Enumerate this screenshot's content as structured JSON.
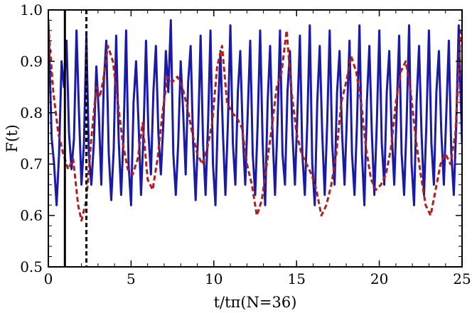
{
  "chart_data": {
    "type": "line",
    "xlabel": "t/tπ(N=36)",
    "ylabel": "F(t)",
    "xlim": [
      0,
      25
    ],
    "ylim": [
      0.5,
      1.0
    ],
    "xticks": [
      "0",
      "5",
      "10",
      "15",
      "20",
      "25"
    ],
    "yticks": [
      "0.5",
      "0.6",
      "0.7",
      "0.8",
      "0.9",
      "1.0"
    ],
    "vlines": [
      {
        "x": 1.0,
        "style": "solid",
        "color": "#000000"
      },
      {
        "x": 2.3,
        "style": "dashed",
        "color": "#000000"
      }
    ],
    "series": [
      {
        "style": "solid",
        "color": "#1a1aa6",
        "points": [
          [
            0.0,
            0.98
          ],
          [
            0.2,
            0.75
          ],
          [
            0.35,
            0.7
          ],
          [
            0.5,
            0.62
          ],
          [
            0.65,
            0.72
          ],
          [
            0.8,
            0.9
          ],
          [
            0.95,
            0.85
          ],
          [
            1.1,
            0.94
          ],
          [
            1.25,
            0.76
          ],
          [
            1.4,
            0.69
          ],
          [
            1.55,
            0.75
          ],
          [
            1.7,
            0.96
          ],
          [
            1.85,
            0.8
          ],
          [
            2.0,
            0.66
          ],
          [
            2.15,
            0.74
          ],
          [
            2.3,
            0.95
          ],
          [
            2.45,
            0.72
          ],
          [
            2.6,
            0.66
          ],
          [
            2.75,
            0.74
          ],
          [
            2.9,
            0.89
          ],
          [
            3.05,
            0.8
          ],
          [
            3.2,
            0.66
          ],
          [
            3.35,
            0.86
          ],
          [
            3.5,
            0.94
          ],
          [
            3.65,
            0.72
          ],
          [
            3.8,
            0.63
          ],
          [
            3.95,
            0.73
          ],
          [
            4.1,
            0.95
          ],
          [
            4.25,
            0.75
          ],
          [
            4.4,
            0.64
          ],
          [
            4.55,
            0.76
          ],
          [
            4.7,
            0.96
          ],
          [
            4.85,
            0.7
          ],
          [
            5.0,
            0.62
          ],
          [
            5.15,
            0.82
          ],
          [
            5.3,
            0.9
          ],
          [
            5.45,
            0.78
          ],
          [
            5.6,
            0.64
          ],
          [
            5.75,
            0.76
          ],
          [
            5.9,
            0.94
          ],
          [
            6.05,
            0.76
          ],
          [
            6.2,
            0.68
          ],
          [
            6.35,
            0.84
          ],
          [
            6.5,
            0.93
          ],
          [
            6.65,
            0.76
          ],
          [
            6.8,
            0.68
          ],
          [
            6.95,
            0.78
          ],
          [
            7.1,
            0.92
          ],
          [
            7.25,
            0.84
          ],
          [
            7.4,
            0.98
          ],
          [
            7.55,
            0.72
          ],
          [
            7.7,
            0.64
          ],
          [
            7.85,
            0.74
          ],
          [
            8.0,
            0.9
          ],
          [
            8.15,
            0.8
          ],
          [
            8.3,
            0.68
          ],
          [
            8.45,
            0.86
          ],
          [
            8.6,
            0.93
          ],
          [
            8.75,
            0.74
          ],
          [
            8.9,
            0.63
          ],
          [
            9.05,
            0.76
          ],
          [
            9.2,
            0.95
          ],
          [
            9.35,
            0.74
          ],
          [
            9.5,
            0.64
          ],
          [
            9.65,
            0.78
          ],
          [
            9.8,
            0.96
          ],
          [
            9.95,
            0.7
          ],
          [
            10.1,
            0.62
          ],
          [
            10.25,
            0.8
          ],
          [
            10.4,
            0.92
          ],
          [
            10.55,
            0.76
          ],
          [
            10.7,
            0.64
          ],
          [
            10.85,
            0.78
          ],
          [
            11.0,
            0.97
          ],
          [
            11.15,
            0.74
          ],
          [
            11.3,
            0.66
          ],
          [
            11.45,
            0.84
          ],
          [
            11.6,
            0.92
          ],
          [
            11.75,
            0.76
          ],
          [
            11.9,
            0.66
          ],
          [
            12.05,
            0.8
          ],
          [
            12.2,
            0.94
          ],
          [
            12.35,
            0.72
          ],
          [
            12.5,
            0.64
          ],
          [
            12.65,
            0.78
          ],
          [
            12.8,
            0.96
          ],
          [
            12.95,
            0.74
          ],
          [
            13.1,
            0.62
          ],
          [
            13.25,
            0.82
          ],
          [
            13.4,
            0.93
          ],
          [
            13.55,
            0.76
          ],
          [
            13.7,
            0.64
          ],
          [
            13.85,
            0.78
          ],
          [
            14.0,
            0.96
          ],
          [
            14.15,
            0.72
          ],
          [
            14.3,
            0.66
          ],
          [
            14.45,
            0.84
          ],
          [
            14.6,
            0.92
          ],
          [
            14.75,
            0.76
          ],
          [
            14.9,
            0.66
          ],
          [
            15.05,
            0.8
          ],
          [
            15.2,
            0.95
          ],
          [
            15.35,
            0.72
          ],
          [
            15.5,
            0.64
          ],
          [
            15.65,
            0.78
          ],
          [
            15.8,
            0.97
          ],
          [
            15.95,
            0.7
          ],
          [
            16.1,
            0.62
          ],
          [
            16.25,
            0.82
          ],
          [
            16.4,
            0.93
          ],
          [
            16.55,
            0.76
          ],
          [
            16.7,
            0.64
          ],
          [
            16.85,
            0.78
          ],
          [
            17.0,
            0.96
          ],
          [
            17.15,
            0.74
          ],
          [
            17.3,
            0.66
          ],
          [
            17.45,
            0.84
          ],
          [
            17.6,
            0.92
          ],
          [
            17.75,
            0.76
          ],
          [
            17.9,
            0.66
          ],
          [
            18.05,
            0.8
          ],
          [
            18.2,
            0.94
          ],
          [
            18.35,
            0.72
          ],
          [
            18.5,
            0.64
          ],
          [
            18.65,
            0.78
          ],
          [
            18.8,
            0.97
          ],
          [
            18.95,
            0.72
          ],
          [
            19.1,
            0.62
          ],
          [
            19.25,
            0.82
          ],
          [
            19.4,
            0.93
          ],
          [
            19.55,
            0.76
          ],
          [
            19.7,
            0.64
          ],
          [
            19.85,
            0.78
          ],
          [
            20.0,
            0.96
          ],
          [
            20.15,
            0.74
          ],
          [
            20.3,
            0.66
          ],
          [
            20.45,
            0.84
          ],
          [
            20.6,
            0.92
          ],
          [
            20.75,
            0.76
          ],
          [
            20.9,
            0.66
          ],
          [
            21.05,
            0.8
          ],
          [
            21.2,
            0.95
          ],
          [
            21.35,
            0.72
          ],
          [
            21.5,
            0.64
          ],
          [
            21.65,
            0.78
          ],
          [
            21.8,
            0.97
          ],
          [
            21.95,
            0.7
          ],
          [
            22.1,
            0.62
          ],
          [
            22.25,
            0.82
          ],
          [
            22.4,
            0.93
          ],
          [
            22.55,
            0.76
          ],
          [
            22.7,
            0.64
          ],
          [
            22.85,
            0.78
          ],
          [
            23.0,
            0.96
          ],
          [
            23.15,
            0.74
          ],
          [
            23.3,
            0.66
          ],
          [
            23.45,
            0.84
          ],
          [
            23.6,
            0.92
          ],
          [
            23.75,
            0.76
          ],
          [
            23.9,
            0.66
          ],
          [
            24.05,
            0.8
          ],
          [
            24.2,
            0.94
          ],
          [
            24.35,
            0.72
          ],
          [
            24.5,
            0.64
          ],
          [
            24.65,
            0.78
          ],
          [
            24.8,
            0.97
          ],
          [
            25.0,
            0.74
          ]
        ]
      },
      {
        "style": "dashed",
        "color": "#b01e1e",
        "points": [
          [
            0.0,
            0.97
          ],
          [
            0.3,
            0.84
          ],
          [
            0.6,
            0.76
          ],
          [
            0.9,
            0.72
          ],
          [
            1.2,
            0.69
          ],
          [
            1.5,
            0.71
          ],
          [
            1.8,
            0.62
          ],
          [
            2.0,
            0.59
          ],
          [
            2.3,
            0.63
          ],
          [
            2.6,
            0.75
          ],
          [
            2.9,
            0.85
          ],
          [
            3.1,
            0.83
          ],
          [
            3.3,
            0.86
          ],
          [
            3.6,
            0.93
          ],
          [
            3.9,
            0.9
          ],
          [
            4.2,
            0.82
          ],
          [
            4.5,
            0.74
          ],
          [
            4.8,
            0.69
          ],
          [
            5.1,
            0.68
          ],
          [
            5.4,
            0.71
          ],
          [
            5.7,
            0.78
          ],
          [
            6.0,
            0.67
          ],
          [
            6.3,
            0.65
          ],
          [
            6.6,
            0.71
          ],
          [
            6.9,
            0.8
          ],
          [
            7.2,
            0.87
          ],
          [
            7.5,
            0.86
          ],
          [
            7.8,
            0.87
          ],
          [
            8.1,
            0.85
          ],
          [
            8.4,
            0.81
          ],
          [
            8.7,
            0.76
          ],
          [
            9.0,
            0.72
          ],
          [
            9.3,
            0.7
          ],
          [
            9.6,
            0.73
          ],
          [
            9.9,
            0.78
          ],
          [
            10.2,
            0.89
          ],
          [
            10.5,
            0.93
          ],
          [
            10.8,
            0.82
          ],
          [
            11.1,
            0.8
          ],
          [
            11.4,
            0.79
          ],
          [
            11.7,
            0.77
          ],
          [
            12.0,
            0.7
          ],
          [
            12.3,
            0.66
          ],
          [
            12.6,
            0.6
          ],
          [
            12.9,
            0.63
          ],
          [
            13.2,
            0.7
          ],
          [
            13.5,
            0.77
          ],
          [
            13.8,
            0.85
          ],
          [
            14.1,
            0.88
          ],
          [
            14.4,
            0.96
          ],
          [
            14.7,
            0.84
          ],
          [
            15.0,
            0.76
          ],
          [
            15.3,
            0.72
          ],
          [
            15.6,
            0.7
          ],
          [
            15.9,
            0.68
          ],
          [
            16.2,
            0.65
          ],
          [
            16.5,
            0.6
          ],
          [
            16.8,
            0.62
          ],
          [
            17.1,
            0.66
          ],
          [
            17.4,
            0.72
          ],
          [
            17.7,
            0.82
          ],
          [
            18.0,
            0.86
          ],
          [
            18.3,
            0.91
          ],
          [
            18.6,
            0.88
          ],
          [
            18.9,
            0.82
          ],
          [
            19.2,
            0.73
          ],
          [
            19.5,
            0.67
          ],
          [
            19.8,
            0.65
          ],
          [
            20.1,
            0.66
          ],
          [
            20.4,
            0.68
          ],
          [
            20.7,
            0.73
          ],
          [
            21.0,
            0.82
          ],
          [
            21.3,
            0.88
          ],
          [
            21.6,
            0.9
          ],
          [
            21.9,
            0.84
          ],
          [
            22.2,
            0.75
          ],
          [
            22.5,
            0.68
          ],
          [
            22.8,
            0.62
          ],
          [
            23.1,
            0.6
          ],
          [
            23.4,
            0.65
          ],
          [
            23.7,
            0.7
          ],
          [
            24.0,
            0.72
          ],
          [
            24.3,
            0.7
          ],
          [
            24.6,
            0.76
          ],
          [
            24.9,
            0.95
          ],
          [
            25.0,
            0.97
          ]
        ]
      }
    ]
  }
}
